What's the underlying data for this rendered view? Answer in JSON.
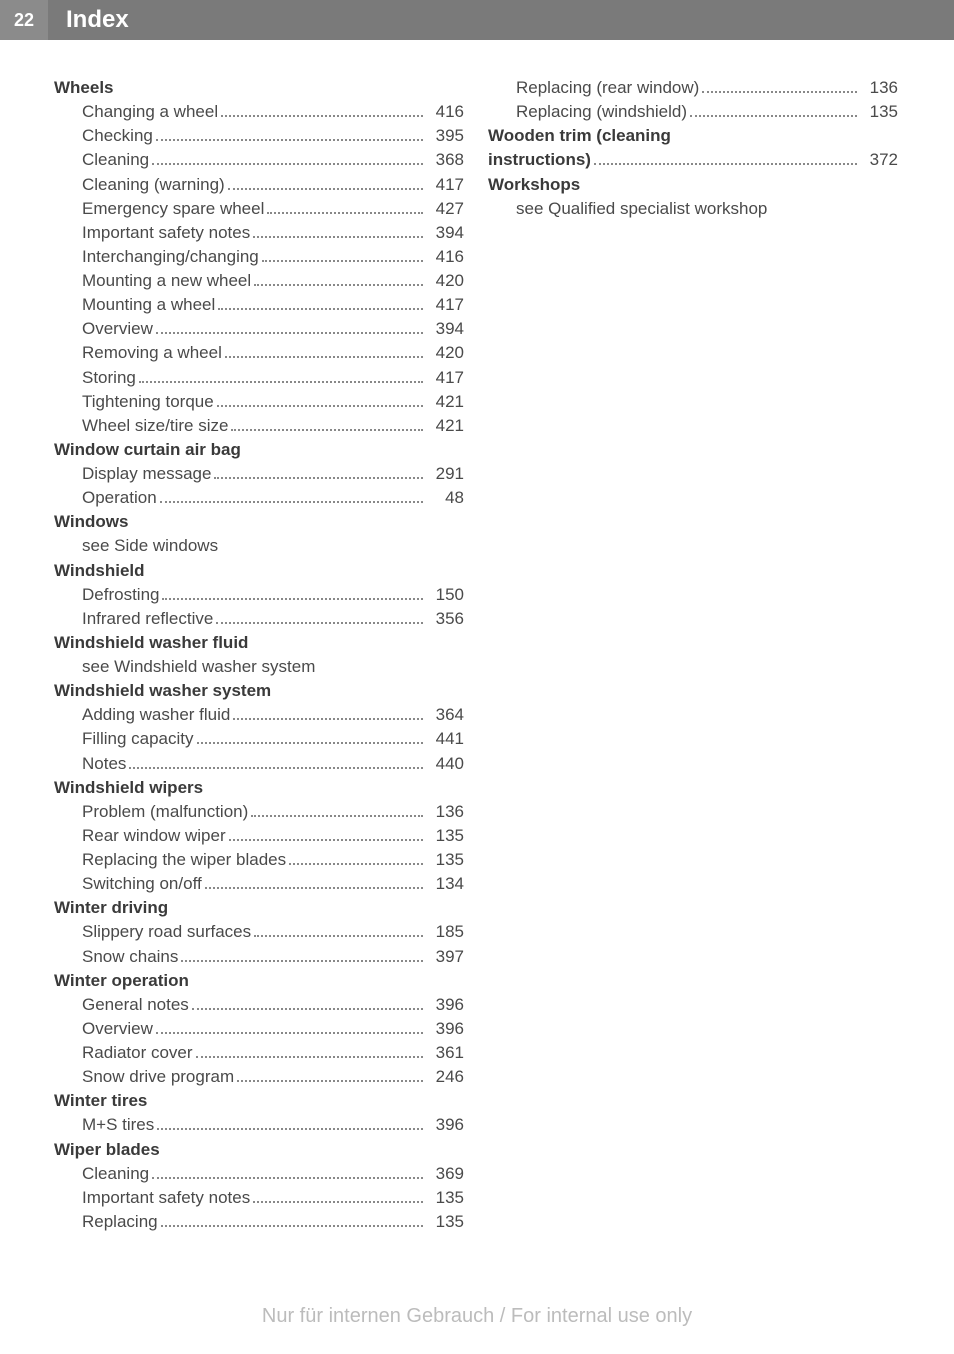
{
  "header": {
    "page_number": "22",
    "title": "Index"
  },
  "left_column": [
    {
      "type": "title",
      "text": "Wheels"
    },
    {
      "type": "entry",
      "label": "Changing a wheel",
      "page": "416"
    },
    {
      "type": "entry",
      "label": "Checking",
      "page": "395"
    },
    {
      "type": "entry",
      "label": "Cleaning",
      "page": "368"
    },
    {
      "type": "entry",
      "label": "Cleaning (warning)",
      "page": "417"
    },
    {
      "type": "entry",
      "label": "Emergency spare wheel",
      "page": "427"
    },
    {
      "type": "entry",
      "label": "Important safety notes",
      "page": "394"
    },
    {
      "type": "entry",
      "label": "Interchanging/changing",
      "page": "416"
    },
    {
      "type": "entry",
      "label": "Mounting a new wheel",
      "page": "420"
    },
    {
      "type": "entry",
      "label": "Mounting a wheel",
      "page": "417"
    },
    {
      "type": "entry",
      "label": "Overview",
      "page": "394"
    },
    {
      "type": "entry",
      "label": "Removing a wheel",
      "page": "420"
    },
    {
      "type": "entry",
      "label": "Storing",
      "page": "417"
    },
    {
      "type": "entry",
      "label": "Tightening torque",
      "page": "421"
    },
    {
      "type": "entry",
      "label": "Wheel size/tire size",
      "page": "421"
    },
    {
      "type": "title",
      "text": "Window curtain air bag"
    },
    {
      "type": "entry",
      "label": "Display message",
      "page": "291"
    },
    {
      "type": "entry",
      "label": "Operation",
      "page": "48"
    },
    {
      "type": "title",
      "text": "Windows"
    },
    {
      "type": "see",
      "text": "see Side windows"
    },
    {
      "type": "title",
      "text": "Windshield"
    },
    {
      "type": "entry",
      "label": "Defrosting",
      "page": "150"
    },
    {
      "type": "entry",
      "label": "Infrared reflective",
      "page": "356"
    },
    {
      "type": "title",
      "text": "Windshield washer fluid"
    },
    {
      "type": "see",
      "text": "see Windshield washer system"
    },
    {
      "type": "title",
      "text": "Windshield washer system"
    },
    {
      "type": "entry",
      "label": "Adding washer fluid",
      "page": "364"
    },
    {
      "type": "entry",
      "label": "Filling capacity",
      "page": "441"
    },
    {
      "type": "entry",
      "label": "Notes",
      "page": "440"
    },
    {
      "type": "title",
      "text": "Windshield wipers"
    },
    {
      "type": "entry",
      "label": "Problem (malfunction)",
      "page": "136"
    },
    {
      "type": "entry",
      "label": "Rear window wiper",
      "page": "135"
    },
    {
      "type": "entry",
      "label": "Replacing the wiper blades",
      "page": "135"
    },
    {
      "type": "entry",
      "label": "Switching on/off",
      "page": "134"
    },
    {
      "type": "title",
      "text": "Winter driving"
    },
    {
      "type": "entry",
      "label": "Slippery road surfaces",
      "page": "185"
    },
    {
      "type": "entry",
      "label": "Snow chains",
      "page": "397"
    },
    {
      "type": "title",
      "text": "Winter operation"
    },
    {
      "type": "entry",
      "label": "General notes",
      "page": "396"
    },
    {
      "type": "entry",
      "label": "Overview",
      "page": "396"
    },
    {
      "type": "entry",
      "label": "Radiator cover",
      "page": "361"
    },
    {
      "type": "entry",
      "label": "Snow drive program",
      "page": "246"
    },
    {
      "type": "title",
      "text": "Winter tires"
    },
    {
      "type": "entry",
      "label": "M+S tires",
      "page": "396"
    },
    {
      "type": "title",
      "text": "Wiper blades"
    },
    {
      "type": "entry",
      "label": "Cleaning",
      "page": "369"
    },
    {
      "type": "entry",
      "label": "Important safety notes",
      "page": "135"
    },
    {
      "type": "entry",
      "label": "Replacing",
      "page": "135"
    }
  ],
  "right_column": [
    {
      "type": "entry",
      "label": "Replacing (rear window)",
      "page": "136"
    },
    {
      "type": "entry",
      "label": "Replacing (windshield)",
      "page": "135"
    },
    {
      "type": "title-line1",
      "text": "Wooden trim (cleaning"
    },
    {
      "type": "title-entry",
      "label": "instructions)",
      "page": "372"
    },
    {
      "type": "title",
      "text": "Workshops"
    },
    {
      "type": "see",
      "text": "see Qualified specialist workshop"
    }
  ],
  "footer": {
    "text": "Nur für internen Gebrauch / For internal use only"
  }
}
